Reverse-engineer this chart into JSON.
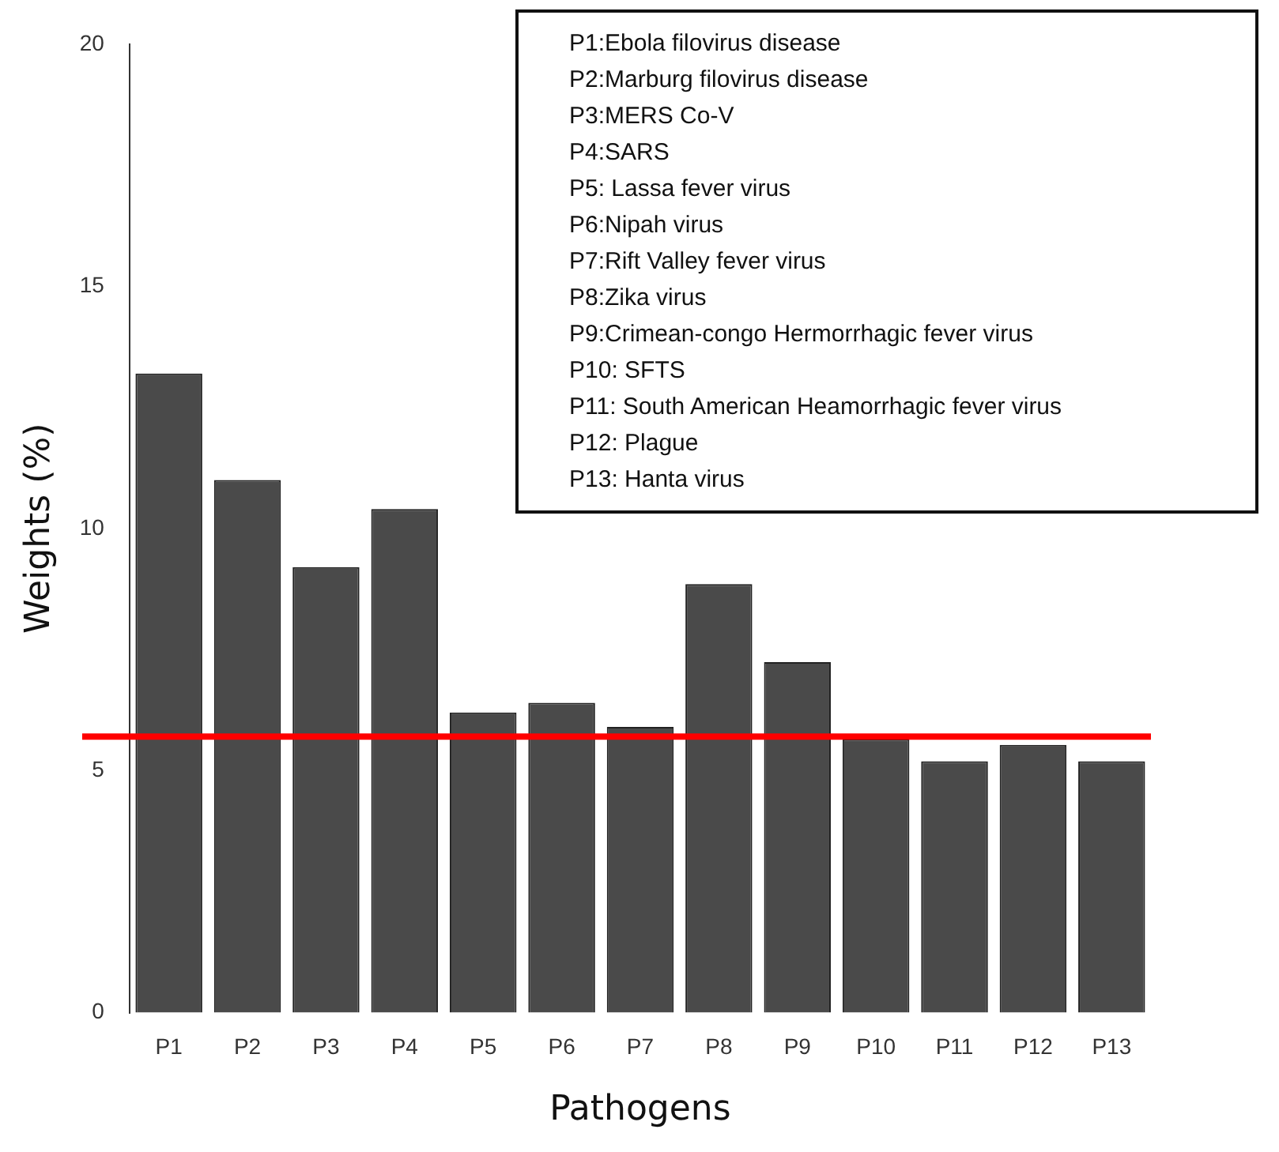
{
  "chart_data": {
    "type": "bar",
    "xlabel": "Pathogens",
    "ylabel": "Weights (%)",
    "categories": [
      "P1",
      "P2",
      "P3",
      "P4",
      "P5",
      "P6",
      "P7",
      "P8",
      "P9",
      "P10",
      "P11",
      "P12",
      "P13"
    ],
    "values": [
      13.2,
      11.0,
      9.2,
      10.4,
      6.2,
      6.4,
      5.9,
      8.85,
      7.24,
      5.65,
      5.19,
      5.53,
      5.19
    ],
    "color": "#4a4a4a",
    "ylim": [
      0,
      20
    ],
    "yticks": [
      0,
      5,
      10,
      15,
      20
    ],
    "grid": false,
    "legend": false,
    "ref_lines": [
      {
        "axis": "y",
        "value": 5.7,
        "label": null,
        "color": "#ff0000"
      }
    ],
    "annotations": [
      "P1:Ebola  filovirus disease",
      "P2:Marburg  filovirus disease",
      "P3:MERS Co-V",
      "P4:SARS",
      "P5: Lassa fever virus",
      "P6:Nipah virus",
      "P7:Rift Valley fever virus",
      "P8:Zika virus",
      "P9:Crimean-congo Hermorrhagic fever virus",
      "P10: SFTS",
      "P11: South American Heamorrhagic fever virus",
      "P12: Plague",
      "P13: Hanta virus"
    ]
  }
}
